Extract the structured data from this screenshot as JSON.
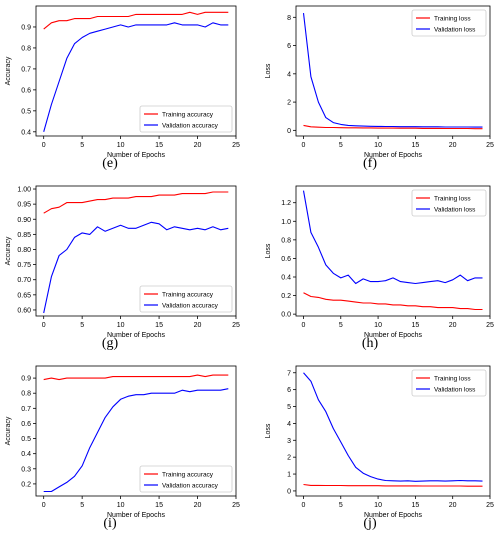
{
  "colors": {
    "training": "#ff0000",
    "validation": "#0000ff"
  },
  "panel_labels": [
    "(e)",
    "(f)",
    "(g)",
    "(h)",
    "(i)",
    "(j)"
  ],
  "chart_data": [
    {
      "type": "line",
      "xlabel": "Number of Epochs",
      "ylabel": "Accuracy",
      "xlim": [
        -1,
        25
      ],
      "ylim": [
        0.38,
        1.0
      ],
      "xticks": [
        0,
        5,
        10,
        15,
        20,
        25
      ],
      "yticks": [
        0.4,
        0.5,
        0.6,
        0.7,
        0.8,
        0.9
      ],
      "legend": "bottom-right",
      "x": [
        0,
        1,
        2,
        3,
        4,
        5,
        6,
        7,
        8,
        9,
        10,
        11,
        12,
        13,
        14,
        15,
        16,
        17,
        18,
        19,
        20,
        21,
        22,
        23,
        24
      ],
      "series": [
        {
          "name": "Training accuracy",
          "values": [
            0.89,
            0.92,
            0.93,
            0.93,
            0.94,
            0.94,
            0.94,
            0.95,
            0.95,
            0.95,
            0.95,
            0.95,
            0.96,
            0.96,
            0.96,
            0.96,
            0.96,
            0.96,
            0.96,
            0.97,
            0.96,
            0.97,
            0.97,
            0.97,
            0.97
          ]
        },
        {
          "name": "Validation accuracy",
          "values": [
            0.4,
            0.53,
            0.64,
            0.75,
            0.82,
            0.85,
            0.87,
            0.88,
            0.89,
            0.9,
            0.91,
            0.9,
            0.91,
            0.91,
            0.91,
            0.91,
            0.91,
            0.92,
            0.91,
            0.91,
            0.91,
            0.9,
            0.92,
            0.91,
            0.91
          ]
        }
      ]
    },
    {
      "type": "line",
      "xlabel": "Number of Epochs",
      "ylabel": "Loss",
      "xlim": [
        -1,
        25
      ],
      "ylim": [
        -0.4,
        8.8
      ],
      "xticks": [
        0,
        5,
        10,
        15,
        20,
        25
      ],
      "yticks": [
        0,
        2,
        4,
        6,
        8
      ],
      "legend": "top-right",
      "x": [
        0,
        1,
        2,
        3,
        4,
        5,
        6,
        7,
        8,
        9,
        10,
        11,
        12,
        13,
        14,
        15,
        16,
        17,
        18,
        19,
        20,
        21,
        22,
        23,
        24
      ],
      "series": [
        {
          "name": "Training loss",
          "values": [
            0.35,
            0.25,
            0.22,
            0.2,
            0.2,
            0.19,
            0.18,
            0.18,
            0.17,
            0.17,
            0.16,
            0.16,
            0.16,
            0.15,
            0.15,
            0.15,
            0.14,
            0.14,
            0.14,
            0.13,
            0.13,
            0.13,
            0.13,
            0.12,
            0.12
          ]
        },
        {
          "name": "Validation loss",
          "values": [
            8.3,
            3.8,
            2.0,
            0.9,
            0.55,
            0.42,
            0.35,
            0.32,
            0.3,
            0.29,
            0.28,
            0.27,
            0.27,
            0.26,
            0.26,
            0.26,
            0.25,
            0.25,
            0.25,
            0.24,
            0.24,
            0.24,
            0.24,
            0.23,
            0.23
          ]
        }
      ]
    },
    {
      "type": "line",
      "xlabel": "Number of Epochs",
      "ylabel": "Accuracy",
      "xlim": [
        -1,
        25
      ],
      "ylim": [
        0.58,
        1.01
      ],
      "xticks": [
        0,
        5,
        10,
        15,
        20,
        25
      ],
      "yticks": [
        0.6,
        0.65,
        0.7,
        0.75,
        0.8,
        0.85,
        0.9,
        0.95,
        1.0
      ],
      "legend": "bottom-right",
      "x": [
        0,
        1,
        2,
        3,
        4,
        5,
        6,
        7,
        8,
        9,
        10,
        11,
        12,
        13,
        14,
        15,
        16,
        17,
        18,
        19,
        20,
        21,
        22,
        23,
        24
      ],
      "series": [
        {
          "name": "Training accuracy",
          "values": [
            0.92,
            0.935,
            0.94,
            0.955,
            0.955,
            0.955,
            0.96,
            0.965,
            0.965,
            0.97,
            0.97,
            0.97,
            0.975,
            0.975,
            0.975,
            0.98,
            0.98,
            0.98,
            0.985,
            0.985,
            0.985,
            0.985,
            0.99,
            0.99,
            0.99
          ]
        },
        {
          "name": "Validation accuracy",
          "values": [
            0.59,
            0.71,
            0.78,
            0.8,
            0.84,
            0.855,
            0.85,
            0.875,
            0.86,
            0.87,
            0.88,
            0.87,
            0.87,
            0.88,
            0.89,
            0.885,
            0.865,
            0.875,
            0.87,
            0.865,
            0.87,
            0.865,
            0.875,
            0.865,
            0.87
          ]
        }
      ]
    },
    {
      "type": "line",
      "xlabel": "Number of Epochs",
      "ylabel": "Loss",
      "xlim": [
        -1,
        25
      ],
      "ylim": [
        -0.02,
        1.38
      ],
      "xticks": [
        0,
        5,
        10,
        15,
        20,
        25
      ],
      "yticks": [
        0.0,
        0.2,
        0.4,
        0.6,
        0.8,
        1.0,
        1.2
      ],
      "legend": "top-right",
      "x": [
        0,
        1,
        2,
        3,
        4,
        5,
        6,
        7,
        8,
        9,
        10,
        11,
        12,
        13,
        14,
        15,
        16,
        17,
        18,
        19,
        20,
        21,
        22,
        23,
        24
      ],
      "series": [
        {
          "name": "Training loss",
          "values": [
            0.23,
            0.19,
            0.18,
            0.16,
            0.15,
            0.15,
            0.14,
            0.13,
            0.12,
            0.12,
            0.11,
            0.11,
            0.1,
            0.1,
            0.09,
            0.09,
            0.08,
            0.08,
            0.07,
            0.07,
            0.07,
            0.06,
            0.06,
            0.05,
            0.05
          ]
        },
        {
          "name": "Validation loss",
          "values": [
            1.33,
            0.88,
            0.72,
            0.53,
            0.44,
            0.39,
            0.42,
            0.33,
            0.38,
            0.35,
            0.35,
            0.36,
            0.39,
            0.35,
            0.34,
            0.33,
            0.34,
            0.35,
            0.36,
            0.34,
            0.37,
            0.42,
            0.36,
            0.39,
            0.39
          ]
        }
      ]
    },
    {
      "type": "line",
      "xlabel": "Number of Epochs",
      "ylabel": "Accuracy",
      "xlim": [
        -1,
        25
      ],
      "ylim": [
        0.12,
        0.98
      ],
      "xticks": [
        0,
        5,
        10,
        15,
        20,
        25
      ],
      "yticks": [
        0.2,
        0.3,
        0.4,
        0.5,
        0.6,
        0.7,
        0.8,
        0.9
      ],
      "legend": "bottom-right",
      "x": [
        0,
        1,
        2,
        3,
        4,
        5,
        6,
        7,
        8,
        9,
        10,
        11,
        12,
        13,
        14,
        15,
        16,
        17,
        18,
        19,
        20,
        21,
        22,
        23,
        24
      ],
      "series": [
        {
          "name": "Training accuracy",
          "values": [
            0.89,
            0.9,
            0.89,
            0.9,
            0.9,
            0.9,
            0.9,
            0.9,
            0.9,
            0.91,
            0.91,
            0.91,
            0.91,
            0.91,
            0.91,
            0.91,
            0.91,
            0.91,
            0.91,
            0.91,
            0.92,
            0.91,
            0.92,
            0.92,
            0.92
          ]
        },
        {
          "name": "Validation accuracy",
          "values": [
            0.15,
            0.15,
            0.18,
            0.21,
            0.25,
            0.32,
            0.44,
            0.54,
            0.64,
            0.71,
            0.76,
            0.78,
            0.79,
            0.79,
            0.8,
            0.8,
            0.8,
            0.8,
            0.82,
            0.81,
            0.82,
            0.82,
            0.82,
            0.82,
            0.83
          ]
        }
      ]
    },
    {
      "type": "line",
      "xlabel": "Number of Epochs",
      "ylabel": "Loss",
      "xlim": [
        -1,
        25
      ],
      "ylim": [
        -0.3,
        7.4
      ],
      "xticks": [
        0,
        5,
        10,
        15,
        20,
        25
      ],
      "yticks": [
        0,
        1,
        2,
        3,
        4,
        5,
        6,
        7
      ],
      "legend": "top-right",
      "x": [
        0,
        1,
        2,
        3,
        4,
        5,
        6,
        7,
        8,
        9,
        10,
        11,
        12,
        13,
        14,
        15,
        16,
        17,
        18,
        19,
        20,
        21,
        22,
        23,
        24
      ],
      "series": [
        {
          "name": "Training loss",
          "values": [
            0.38,
            0.33,
            0.33,
            0.32,
            0.32,
            0.32,
            0.31,
            0.31,
            0.31,
            0.31,
            0.31,
            0.3,
            0.3,
            0.3,
            0.3,
            0.3,
            0.29,
            0.29,
            0.29,
            0.29,
            0.29,
            0.29,
            0.28,
            0.28,
            0.28
          ]
        },
        {
          "name": "Validation loss",
          "values": [
            7.0,
            6.5,
            5.4,
            4.7,
            3.7,
            2.9,
            2.1,
            1.4,
            1.05,
            0.85,
            0.7,
            0.62,
            0.6,
            0.58,
            0.6,
            0.57,
            0.58,
            0.6,
            0.6,
            0.58,
            0.6,
            0.62,
            0.6,
            0.6,
            0.58
          ]
        }
      ]
    }
  ]
}
